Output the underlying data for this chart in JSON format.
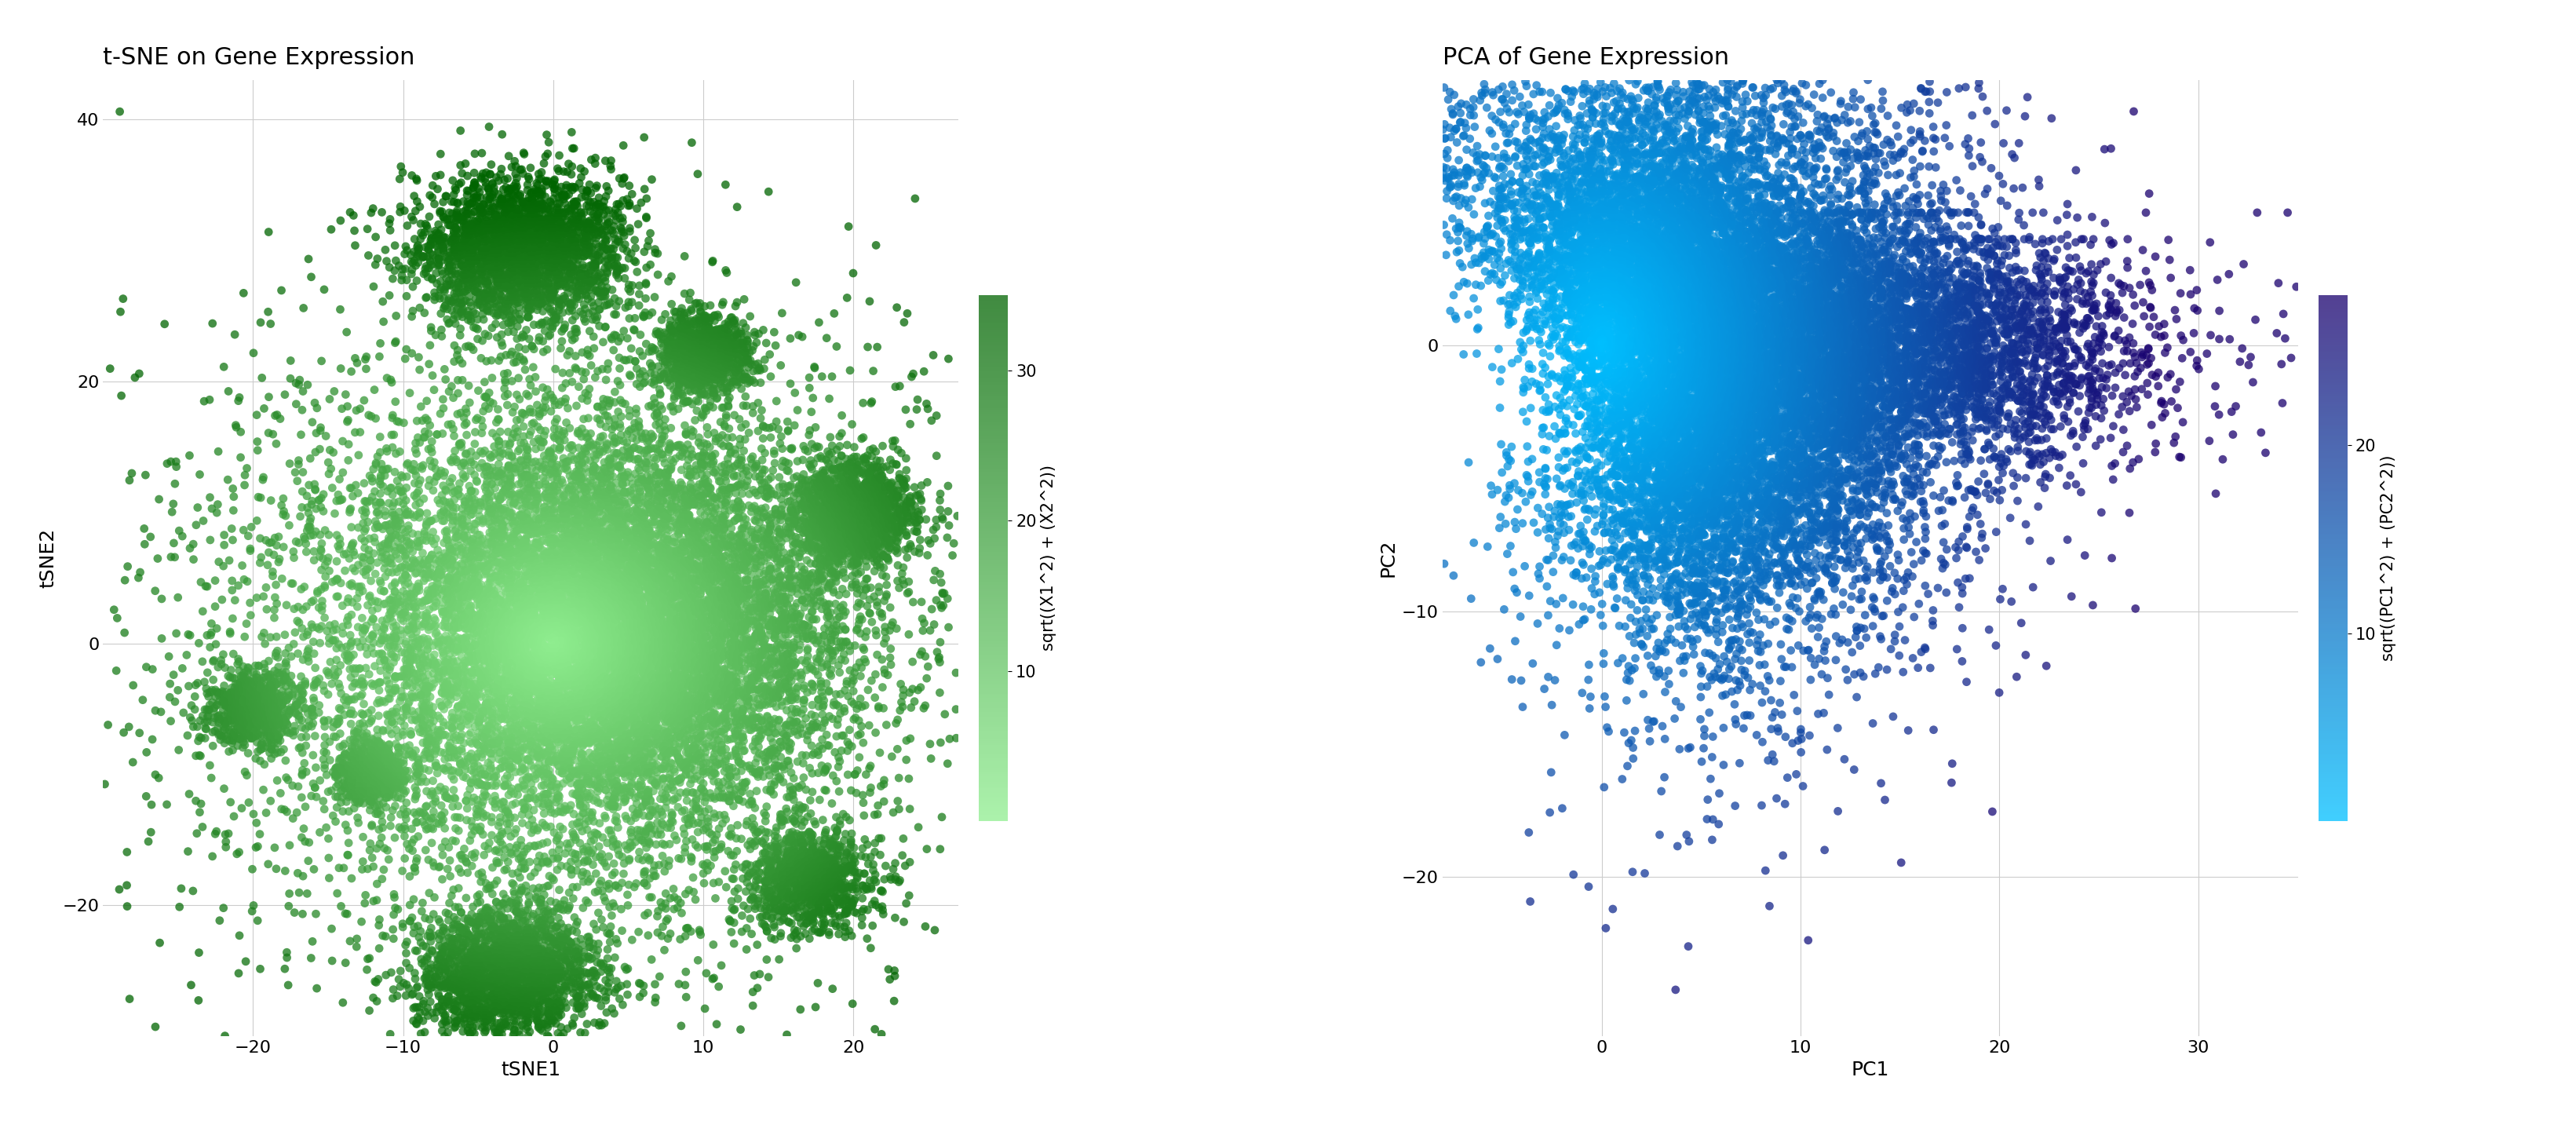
{
  "tsne_title": "t-SNE on Gene Expression",
  "tsne_xlabel": "tSNE1",
  "tsne_ylabel": "tSNE2",
  "tsne_xlim": [
    -30,
    27
  ],
  "tsne_ylim": [
    -30,
    43
  ],
  "tsne_xticks": [
    -20,
    -10,
    0,
    10,
    20
  ],
  "tsne_yticks": [
    -20,
    0,
    20,
    40
  ],
  "tsne_colorbar_label": "sqrt((X1^2) + (X2^2))",
  "tsne_colorbar_ticks": [
    10,
    20,
    30
  ],
  "tsne_cmap_colors": [
    "#90EE90",
    "#006400"
  ],
  "tsne_n_points": 25000,
  "tsne_seed": 42,
  "pca_title": "PCA of Gene Expression",
  "pca_xlabel": "PC1",
  "pca_ylabel": "PC2",
  "pca_xlim": [
    -8,
    35
  ],
  "pca_ylim": [
    -26,
    10
  ],
  "pca_xticks": [
    0,
    10,
    20,
    30
  ],
  "pca_yticks": [
    -20,
    -10,
    0
  ],
  "pca_colorbar_label": "sqrt((PC1^2) + (PC2^2))",
  "pca_colorbar_ticks": [
    10,
    20
  ],
  "pca_cmap_colors": [
    "#00BFFF",
    "#1a006e"
  ],
  "pca_n_points": 20000,
  "pca_seed": 77,
  "bg_color": "#ffffff",
  "grid_color": "#cccccc",
  "title_fontsize": 22,
  "label_fontsize": 18,
  "tick_fontsize": 16,
  "colorbar_label_fontsize": 15,
  "colorbar_tick_fontsize": 15,
  "point_size": 60,
  "point_alpha": 0.75,
  "point_linewidth": 0
}
